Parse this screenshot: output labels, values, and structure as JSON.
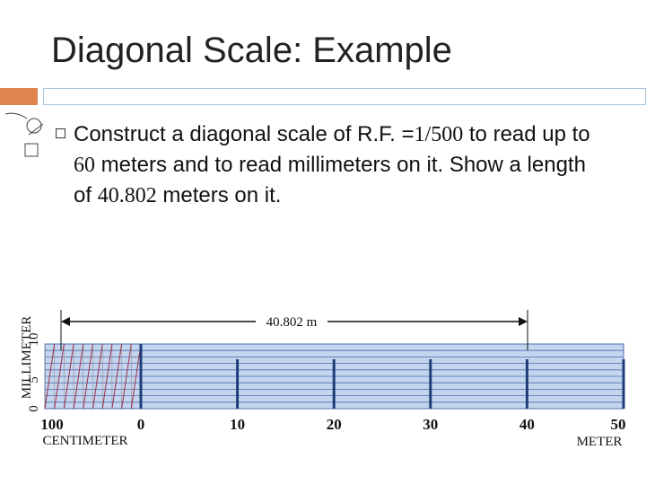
{
  "header": {
    "title": "Diagonal Scale: Example"
  },
  "bullet": {
    "segments": [
      {
        "text": "Construct a diagonal scale of R.F. =",
        "serif": false
      },
      {
        "text": "1/500",
        "serif": true
      },
      {
        "text": " to read up to ",
        "serif": false
      },
      {
        "text": "60",
        "serif": true
      },
      {
        "text": " meters and to read millimeters on it. Show a length of ",
        "serif": false
      },
      {
        "text": "40.802",
        "serif": true
      },
      {
        "text": " meters on it.",
        "serif": false
      }
    ]
  },
  "diagram": {
    "dimension_label": "40.802 m",
    "vertical_title": "MILLIMETER",
    "vertical_labels": [
      "0",
      "5",
      "10"
    ],
    "scale_labels": [
      "100",
      "0",
      "10",
      "20",
      "30",
      "40",
      "50"
    ],
    "left_unit": "CENTIMETER",
    "right_unit": "METER"
  }
}
